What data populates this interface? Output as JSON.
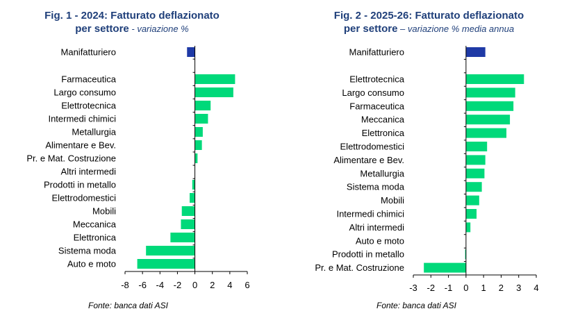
{
  "chart_data": [
    {
      "type": "bar",
      "orientation": "horizontal",
      "title": "Fig. 1 - 2024: Fatturato deflazionato",
      "title_line2": "per settore",
      "subtitle": " - variazione %",
      "source": "Fonte: banca dati ASI",
      "xlim": [
        -8,
        6
      ],
      "xticks": [
        -8,
        -6,
        -4,
        -2,
        0,
        2,
        4,
        6
      ],
      "highlight_color": "#1f3aa6",
      "bar_color": "#00d97a",
      "highlight": {
        "category": "Manifatturiero",
        "value": -0.9
      },
      "categories": [
        "Farmaceutica",
        "Largo consumo",
        "Elettrotecnica",
        "Intermedi chimici",
        "Metallurgia",
        "Alimentare e Bev.",
        "Pr. e Mat. Costruzione",
        "Altri intermedi",
        "Prodotti in metallo",
        "Elettrodomestici",
        "Mobili",
        "Meccanica",
        "Elettronica",
        "Sistema moda",
        "Auto e moto"
      ],
      "values": [
        4.6,
        4.4,
        1.8,
        1.5,
        0.9,
        0.8,
        0.3,
        0.0,
        -0.3,
        -0.6,
        -1.5,
        -1.6,
        -2.8,
        -5.6,
        -6.6
      ]
    },
    {
      "type": "bar",
      "orientation": "horizontal",
      "title": "Fig. 2 - 2025-26: Fatturato deflazionato",
      "title_line2": "per settore",
      "subtitle": " – variazione % media annua",
      "source": "Fonte: banca dati ASI",
      "xlim": [
        -3,
        4
      ],
      "xticks": [
        -3,
        -2,
        -1,
        0,
        1,
        2,
        3,
        4
      ],
      "highlight_color": "#1f3aa6",
      "bar_color": "#00d97a",
      "highlight": {
        "category": "Manifatturiero",
        "value": 1.1
      },
      "categories": [
        "Elettrotecnica",
        "Largo consumo",
        "Farmaceutica",
        "Meccanica",
        "Elettronica",
        "Elettrodomestici",
        "Alimentare e Bev.",
        "Metallurgia",
        "Sistema moda",
        "Mobili",
        "Intermedi chimici",
        "Altri intermedi",
        "Auto e moto",
        "Prodotti in metallo",
        "Pr. e Mat. Costruzione"
      ],
      "values": [
        3.3,
        2.8,
        2.7,
        2.5,
        2.3,
        1.2,
        1.1,
        1.05,
        0.9,
        0.75,
        0.6,
        0.25,
        0.0,
        -0.05,
        -2.4
      ]
    }
  ]
}
